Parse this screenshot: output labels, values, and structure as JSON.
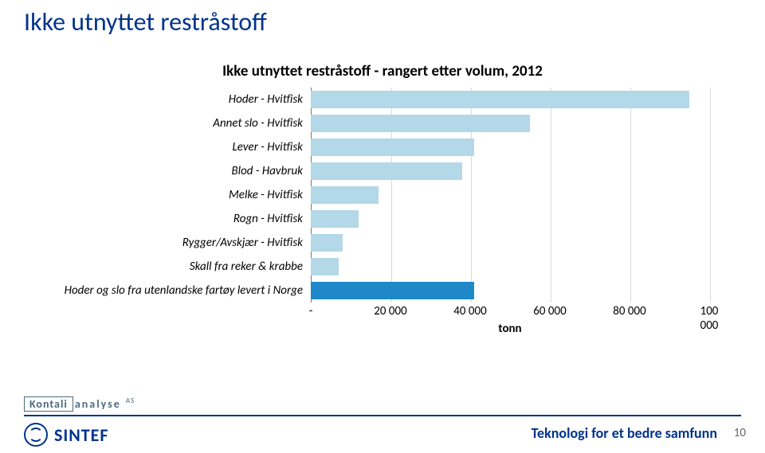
{
  "title": "Ikke utnyttet restråstoff",
  "chart": {
    "type": "bar-horizontal",
    "title": "Ikke utnyttet restråstoff - rangert etter volum, 2012",
    "xlabel": "tonn",
    "xlim": [
      0,
      100000
    ],
    "xtick_step": 20000,
    "xtick_labels": [
      "-",
      "20 000",
      "40 000",
      "60 000",
      "80 000",
      "100 000"
    ],
    "background_color": "#ffffff",
    "grid_color": "#d9d9d9",
    "axis_color": "#787878",
    "font_italic": true,
    "label_fontsize": 15,
    "title_fontsize": 19,
    "bar_fill_default": "#b3d8e7",
    "bar_fill_highlight": "#1f88c9",
    "categories": [
      {
        "label": "Hoder - Hvitfisk",
        "value": 95000,
        "highlight": false
      },
      {
        "label": "Annet slo - Hvitfisk",
        "value": 55000,
        "highlight": false
      },
      {
        "label": "Lever - Hvitfisk",
        "value": 41000,
        "highlight": false
      },
      {
        "label": "Blod - Havbruk",
        "value": 38000,
        "highlight": false
      },
      {
        "label": "Melke - Hvitfisk",
        "value": 17000,
        "highlight": false
      },
      {
        "label": "Rogn - Hvitfisk",
        "value": 12000,
        "highlight": false
      },
      {
        "label": "Rygger/Avskjær - Hvitfisk",
        "value": 8000,
        "highlight": false
      },
      {
        "label": "Skall fra reker & krabbe",
        "value": 7000,
        "highlight": false
      },
      {
        "label": "Hoder og slo fra utenlandske fartøy levert i Norge",
        "value": 41000,
        "highlight": true
      }
    ]
  },
  "footer": {
    "tagline": "Teknologi for et bedre samfunn",
    "page": "10",
    "logo_sintef": "SINTEF",
    "logo_kontali_a": "Kontali",
    "logo_kontali_b": "analyse",
    "logo_kontali_c": "AS"
  }
}
